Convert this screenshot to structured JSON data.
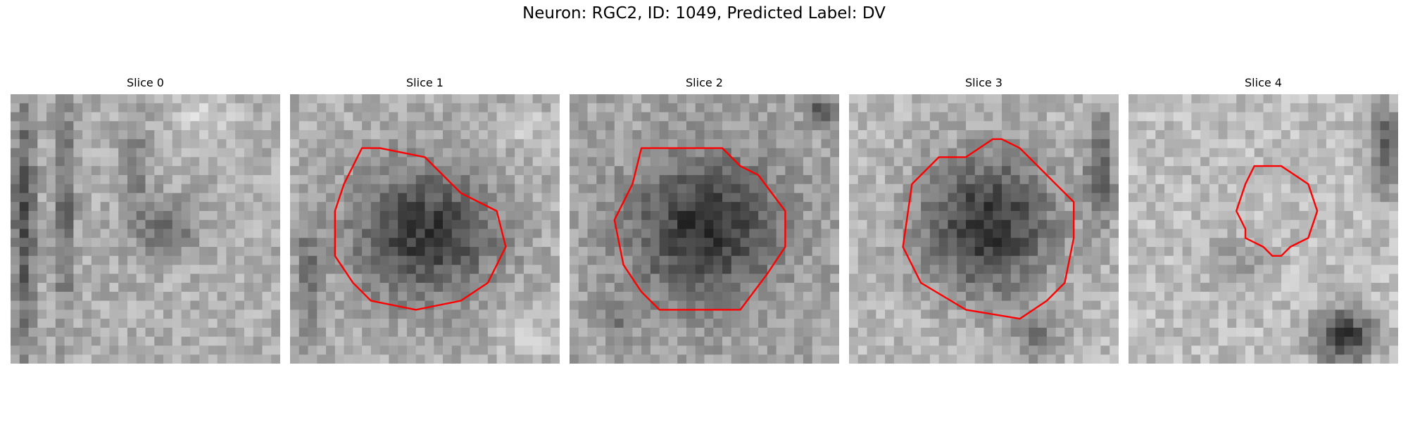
{
  "figure": {
    "suptitle": "Neuron: RGC2, ID: 1049, Predicted Label: DV",
    "contour_color": "#ff0000"
  },
  "slices": [
    {
      "title": "Slice 0",
      "has_contour": false
    },
    {
      "title": "Slice 1",
      "has_contour": true
    },
    {
      "title": "Slice 2",
      "has_contour": true
    },
    {
      "title": "Slice 3",
      "has_contour": true
    },
    {
      "title": "Slice 4",
      "has_contour": true
    }
  ]
}
